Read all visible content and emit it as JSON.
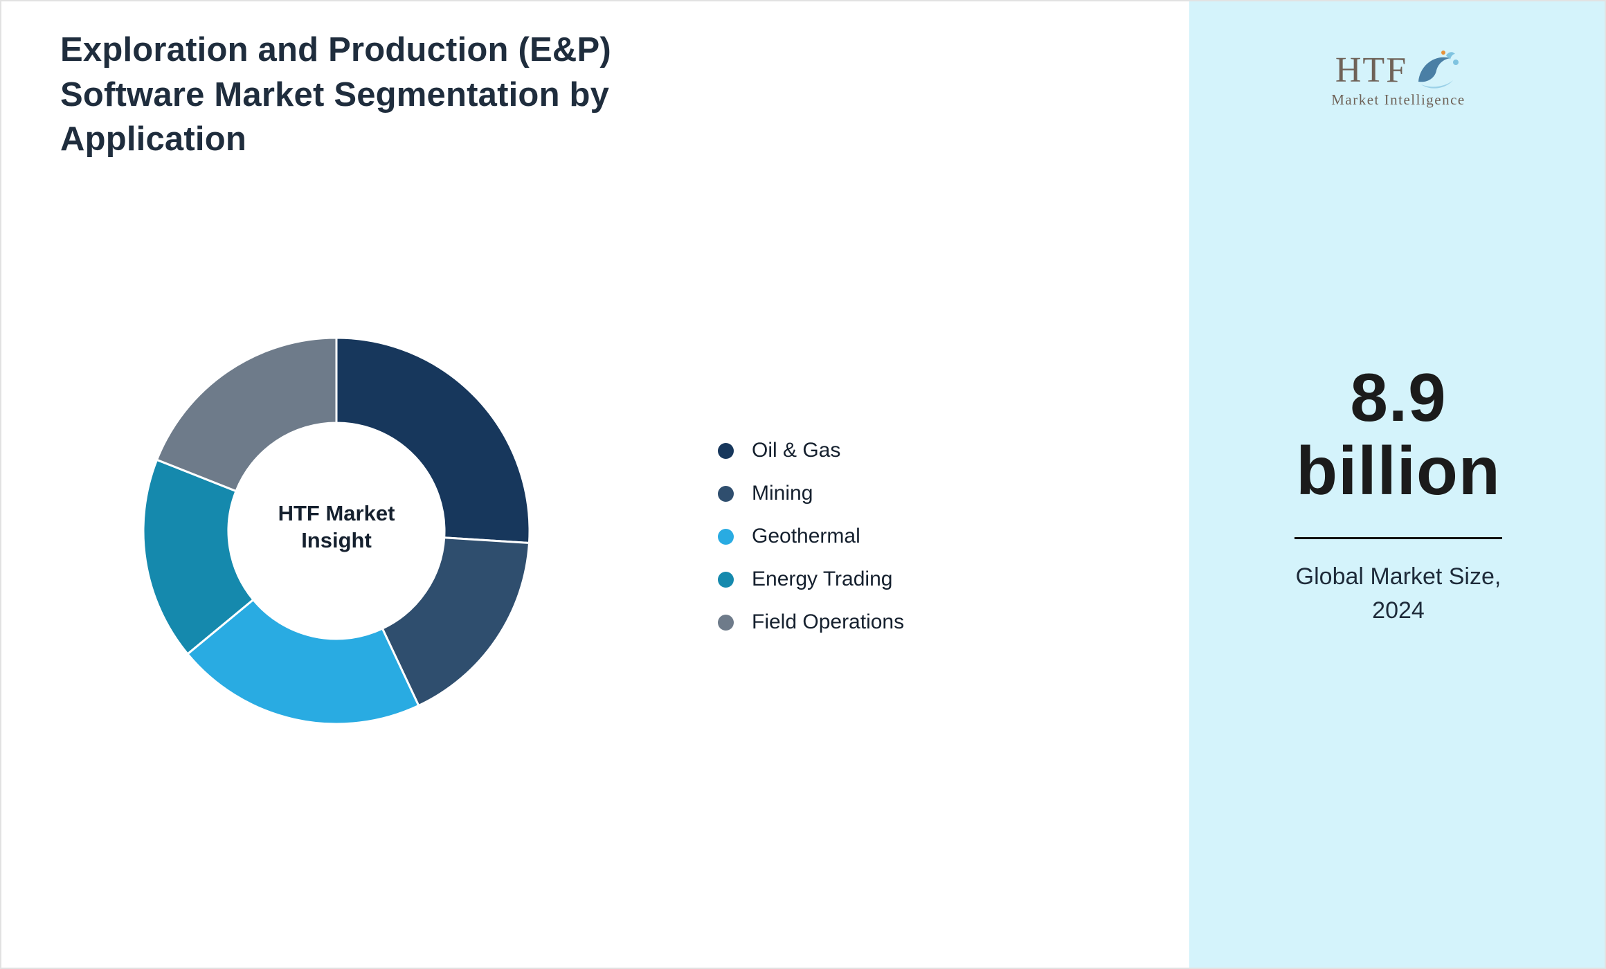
{
  "title": "Exploration and Production (E&P) Software Market Segmentation by Application",
  "logo": {
    "text": "HTF",
    "subtext": "Market Intelligence"
  },
  "market_size": {
    "value_line1": "8.9",
    "value_line2": "billion",
    "caption_line1": "Global Market Size,",
    "caption_line2": "2024"
  },
  "chart_data": {
    "type": "pie",
    "subtype": "donut",
    "center_label": "HTF Market Insight",
    "legend_position": "right",
    "start_angle_deg": 0,
    "direction": "clockwise",
    "inner_radius_ratio": 0.56,
    "values_are_estimated_percent": true,
    "segments": [
      {
        "label": "Oil & Gas",
        "value": 26,
        "color": "#17375c"
      },
      {
        "label": "Mining",
        "value": 17,
        "color": "#2f4e6e"
      },
      {
        "label": "Geothermal",
        "value": 21,
        "color": "#29abe2"
      },
      {
        "label": "Energy Trading",
        "value": 17,
        "color": "#1589ad"
      },
      {
        "label": "Field Operations",
        "value": 19,
        "color": "#6e7b8a"
      }
    ]
  }
}
